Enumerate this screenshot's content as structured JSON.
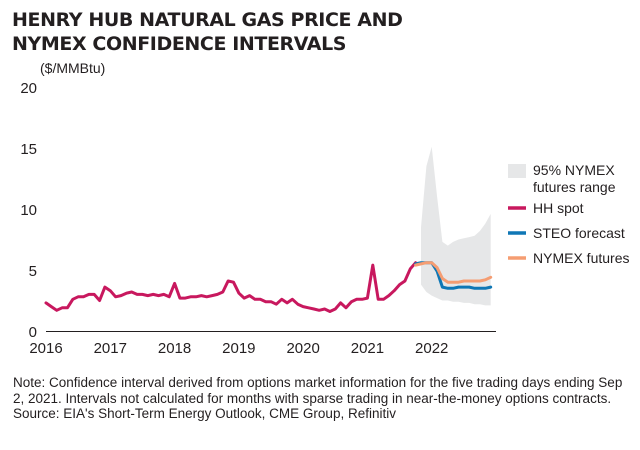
{
  "title_lines": [
    "HENRY HUB NATURAL GAS PRICE AND",
    "NYMEX CONFIDENCE INTERVALS"
  ],
  "chart_data": {
    "type": "line",
    "title": "HENRY HUB NATURAL GAS PRICE AND NYMEX CONFIDENCE INTERVALS",
    "ylabel": "($/MMBtu)",
    "ylim": [
      0,
      20
    ],
    "yticks": [
      "0",
      "5",
      "10",
      "15",
      "20"
    ],
    "xlim": [
      2016,
      2023
    ],
    "xticks": [
      "2016",
      "2017",
      "2018",
      "2019",
      "2020",
      "2021",
      "2022"
    ],
    "grid": false,
    "legend_position": "right",
    "legend": [
      {
        "label": "95% NYMEX futures range",
        "color": "#e6e7e8",
        "kind": "band"
      },
      {
        "label": "HH spot",
        "color": "#c8185e",
        "kind": "line"
      },
      {
        "label": "STEO forecast",
        "color": "#0f77b5",
        "kind": "line"
      },
      {
        "label": "NYMEX futures",
        "color": "#f59d72",
        "kind": "line"
      }
    ],
    "series": [
      {
        "name": "HH spot",
        "color": "#c8185e",
        "x": [
          2016.0,
          2016.083,
          2016.167,
          2016.25,
          2016.333,
          2016.417,
          2016.5,
          2016.583,
          2016.667,
          2016.75,
          2016.833,
          2016.917,
          2017.0,
          2017.083,
          2017.167,
          2017.25,
          2017.333,
          2017.417,
          2017.5,
          2017.583,
          2017.667,
          2017.75,
          2017.833,
          2017.917,
          2018.0,
          2018.083,
          2018.167,
          2018.25,
          2018.333,
          2018.417,
          2018.5,
          2018.583,
          2018.667,
          2018.75,
          2018.833,
          2018.917,
          2019.0,
          2019.083,
          2019.167,
          2019.25,
          2019.333,
          2019.417,
          2019.5,
          2019.583,
          2019.667,
          2019.75,
          2019.833,
          2019.917,
          2020.0,
          2020.083,
          2020.167,
          2020.25,
          2020.333,
          2020.417,
          2020.5,
          2020.583,
          2020.667,
          2020.75,
          2020.833,
          2020.917,
          2021.0,
          2021.083,
          2021.167,
          2021.25,
          2021.333,
          2021.417,
          2021.5,
          2021.583,
          2021.667,
          2021.75
        ],
        "values": [
          2.3,
          2.0,
          1.7,
          1.9,
          1.9,
          2.6,
          2.8,
          2.8,
          3.0,
          3.0,
          2.5,
          3.6,
          3.3,
          2.8,
          2.9,
          3.1,
          3.2,
          3.0,
          3.0,
          2.9,
          3.0,
          2.9,
          3.0,
          2.8,
          3.9,
          2.7,
          2.7,
          2.8,
          2.8,
          2.9,
          2.8,
          2.9,
          3.0,
          3.2,
          4.1,
          4.0,
          3.1,
          2.7,
          2.9,
          2.6,
          2.6,
          2.4,
          2.4,
          2.2,
          2.6,
          2.3,
          2.6,
          2.2,
          2.0,
          1.9,
          1.8,
          1.7,
          1.8,
          1.6,
          1.8,
          2.3,
          1.9,
          2.4,
          2.6,
          2.6,
          2.7,
          5.4,
          2.6,
          2.6,
          2.9,
          3.3,
          3.8,
          4.1,
          5.1,
          5.6
        ]
      },
      {
        "name": "STEO forecast",
        "color": "#0f77b5",
        "x": [
          2021.75,
          2021.833,
          2021.917,
          2022.0,
          2022.083,
          2022.167,
          2022.25,
          2022.333,
          2022.417,
          2022.5,
          2022.583,
          2022.667,
          2022.75,
          2022.833,
          2022.917
        ],
        "values": [
          5.5,
          5.6,
          5.6,
          5.6,
          4.9,
          3.6,
          3.5,
          3.5,
          3.6,
          3.6,
          3.6,
          3.5,
          3.5,
          3.5,
          3.6
        ]
      },
      {
        "name": "NYMEX futures",
        "color": "#f59d72",
        "x": [
          2021.75,
          2021.833,
          2021.917,
          2022.0,
          2022.083,
          2022.167,
          2022.25,
          2022.333,
          2022.417,
          2022.5,
          2022.583,
          2022.667,
          2022.75,
          2022.833,
          2022.917
        ],
        "values": [
          5.4,
          5.5,
          5.6,
          5.6,
          5.2,
          4.3,
          4.0,
          4.0,
          4.0,
          4.1,
          4.1,
          4.1,
          4.1,
          4.2,
          4.4
        ]
      }
    ],
    "band": {
      "name": "95% NYMEX futures range",
      "color": "#e6e7e8",
      "x": [
        2021.833,
        2021.917,
        2022.0,
        2022.083,
        2022.167,
        2022.25,
        2022.333,
        2022.417,
        2022.5,
        2022.583,
        2022.667,
        2022.75,
        2022.833,
        2022.917
      ],
      "upper": [
        8.5,
        13.5,
        15.1,
        11.0,
        7.3,
        7.0,
        7.3,
        7.5,
        7.6,
        7.7,
        7.8,
        8.2,
        8.8,
        9.6
      ],
      "lower": [
        3.8,
        3.2,
        2.9,
        2.7,
        2.5,
        2.5,
        2.4,
        2.4,
        2.3,
        2.3,
        2.2,
        2.2,
        2.1,
        2.1
      ]
    }
  },
  "notes": {
    "note": "Note: Confidence interval derived from options market information for the five trading days ending Sep 2, 2021. Intervals not calculated for months with sparse trading in near-the-money options contracts.",
    "source": "Source: EIA's Short-Term Energy Outlook, CME Group, Refinitiv"
  }
}
